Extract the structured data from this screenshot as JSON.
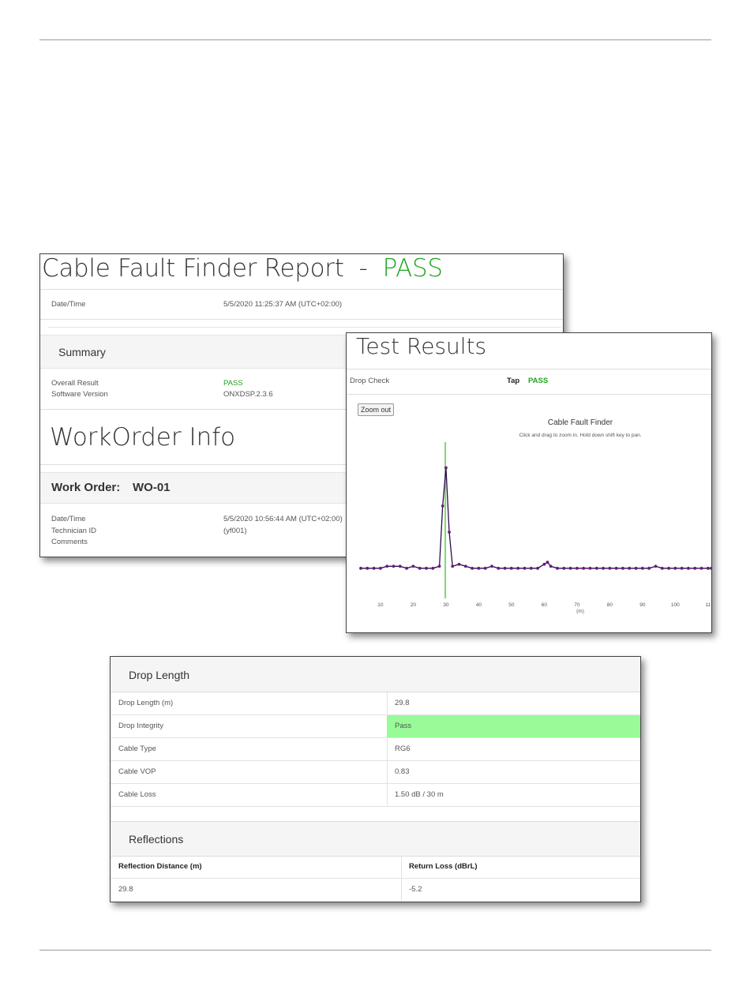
{
  "report": {
    "title": "Cable Fault Finder Report",
    "separator": "-",
    "result": "PASS",
    "datetime_label": "Date/Time",
    "datetime_value": "5/5/2020 11:25:37 AM (UTC+02:00)",
    "summary": {
      "heading": "Summary",
      "overall_label": "Overall Result",
      "overall_value": "PASS",
      "software_label": "Software Version",
      "software_value": "ONXDSP.2.3.6"
    },
    "workorder": {
      "heading": "WorkOrder Info",
      "order_label": "Work Order:",
      "order_value": "WO-01",
      "date_label": "Date/Time",
      "date_value": "5/5/2020 10:56:44 AM (UTC+02:00)",
      "tech_label": "Technician ID",
      "tech_value": "(yf001)",
      "comments_label": "Comments"
    }
  },
  "results": {
    "title": "Test Results",
    "drop_check_label": "Drop Check",
    "tap_label": "Tap",
    "tap_value": "PASS",
    "zoom_out_label": "Zoom out"
  },
  "chart_data": {
    "type": "line",
    "title": "Cable Fault Finder",
    "subtitle": "Click and drag to zoom in. Hold down shift key to pan.",
    "xlabel": "(m)",
    "ylabel": "",
    "x_ticks": [
      "10",
      "20",
      "30",
      "40",
      "50",
      "60",
      "70",
      "80",
      "90",
      "100",
      "11"
    ],
    "xlim": [
      4,
      111
    ],
    "marker_x": 29.8,
    "marker_color": "#7fd86f",
    "line_color": "#2d0b4a",
    "point_color": "#6a1a7a",
    "grid": false,
    "x": [
      4,
      6,
      8,
      10,
      12,
      14,
      16,
      18,
      20,
      22,
      24,
      26,
      28,
      29,
      30,
      31,
      32,
      34,
      36,
      38,
      40,
      42,
      44,
      46,
      48,
      50,
      52,
      54,
      56,
      58,
      60,
      61,
      62,
      64,
      66,
      68,
      70,
      72,
      74,
      76,
      78,
      80,
      82,
      84,
      86,
      88,
      90,
      92,
      94,
      96,
      98,
      100,
      102,
      104,
      106,
      108,
      110,
      111
    ],
    "y": [
      0.0,
      0.0,
      0.0,
      0.0,
      0.01,
      0.01,
      0.01,
      0.0,
      0.01,
      0.0,
      0.0,
      0.0,
      0.01,
      0.31,
      0.5,
      0.18,
      0.01,
      0.02,
      0.01,
      0.0,
      0.0,
      0.0,
      0.01,
      0.0,
      0.0,
      0.0,
      0.0,
      0.0,
      0.0,
      0.0,
      0.02,
      0.03,
      0.01,
      0.0,
      0.0,
      0.0,
      0.0,
      0.0,
      0.0,
      0.0,
      0.0,
      0.0,
      0.0,
      0.0,
      0.0,
      0.0,
      0.0,
      0.0,
      0.01,
      0.0,
      0.0,
      0.0,
      0.0,
      0.0,
      0.0,
      0.0,
      0.0,
      0.0
    ],
    "ylim": [
      -0.15,
      0.62
    ]
  },
  "drop": {
    "heading": "Drop Length",
    "rows": [
      {
        "label": "Drop Length (m)",
        "value": "29.8"
      },
      {
        "label": "Drop Integrity",
        "value": "Pass"
      },
      {
        "label": "Cable Type",
        "value": "RG6"
      },
      {
        "label": "Cable VOP",
        "value": "0.83"
      },
      {
        "label": "Cable Loss",
        "value": "1.50 dB / 30 m"
      }
    ],
    "pass_highlight_color": "#98fb98",
    "reflections": {
      "heading": "Reflections",
      "col1": "Reflection Distance (m)",
      "col2": "Return Loss (dBrL)",
      "row": {
        "distance": "29.8",
        "loss": "-5.2"
      }
    }
  }
}
